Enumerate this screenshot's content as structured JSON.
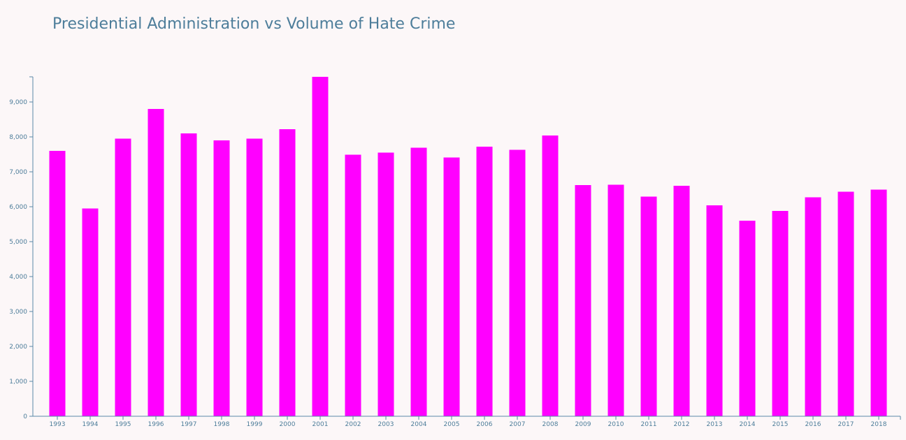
{
  "chart_data": {
    "type": "bar",
    "title": "Presidential Administration vs Volume of Hate Crime",
    "xlabel": "",
    "ylabel": "",
    "categories": [
      "1993",
      "1994",
      "1995",
      "1996",
      "1997",
      "1998",
      "1999",
      "2000",
      "2001",
      "2002",
      "2003",
      "2004",
      "2005",
      "2006",
      "2007",
      "2008",
      "2009",
      "2010",
      "2011",
      "2012",
      "2013",
      "2014",
      "2015",
      "2016",
      "2017",
      "2018"
    ],
    "values": [
      7600,
      5950,
      7950,
      8800,
      8100,
      7900,
      7950,
      8220,
      9720,
      7490,
      7550,
      7690,
      7410,
      7720,
      7630,
      8040,
      6620,
      6630,
      6290,
      6600,
      6040,
      5600,
      5880,
      6270,
      6430,
      6490
    ],
    "ylim": [
      0,
      9720
    ],
    "yticks": [
      0,
      1000,
      2000,
      3000,
      4000,
      5000,
      6000,
      7000,
      8000,
      9000
    ],
    "ytick_labels": [
      "0",
      "1,000",
      "2,000",
      "3,000",
      "4,000",
      "5,000",
      "6,000",
      "7,000",
      "8,000",
      "9,000"
    ],
    "bar_color": "#ff00ff",
    "axis_color": "#5a88a8",
    "grid": false
  }
}
